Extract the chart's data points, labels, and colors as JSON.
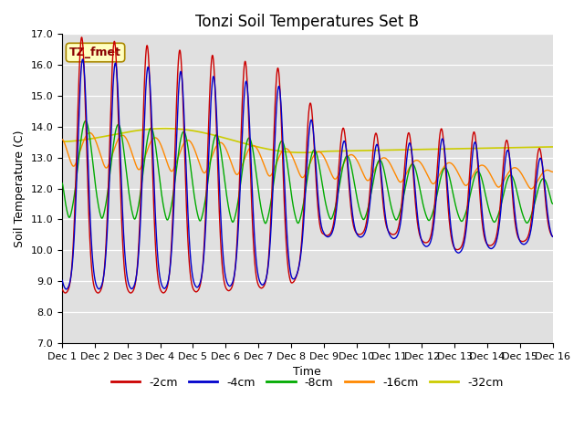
{
  "title": "Tonzi Soil Temperatures Set B",
  "xlabel": "Time",
  "ylabel": "Soil Temperature (C)",
  "annotation": "TZ_fmet",
  "ylim": [
    7.0,
    17.0
  ],
  "yticks": [
    7.0,
    8.0,
    9.0,
    10.0,
    11.0,
    12.0,
    13.0,
    14.0,
    15.0,
    16.0,
    17.0
  ],
  "xtick_labels": [
    "Dec 1",
    "Dec 2",
    "Dec 3",
    "Dec 4",
    "Dec 5",
    "Dec 6",
    "Dec 7",
    "Dec 8",
    "Dec 9",
    "Dec 10",
    "Dec 11",
    "Dec 12",
    "Dec 13",
    "Dec 14",
    "Dec 15",
    "Dec 16"
  ],
  "colors": {
    "-2cm": "#cc0000",
    "-4cm": "#0000cc",
    "-8cm": "#00aa00",
    "-16cm": "#ff8800",
    "-32cm": "#cccc00"
  },
  "line_labels": [
    "-2cm",
    "-4cm",
    "-8cm",
    "-16cm",
    "-32cm"
  ],
  "background_color": "#e0e0e0",
  "title_fontsize": 12,
  "axis_label_fontsize": 9,
  "tick_fontsize": 8
}
